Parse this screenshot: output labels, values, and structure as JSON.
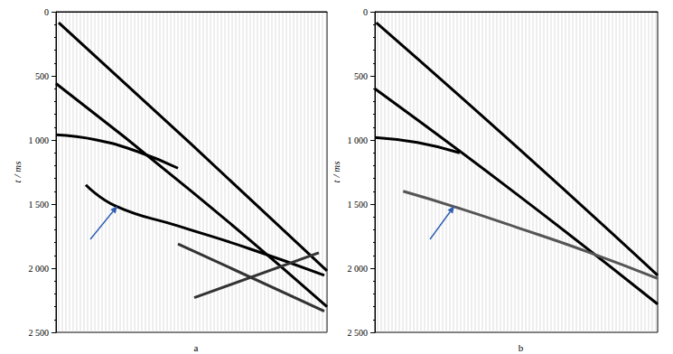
{
  "chart_data": [
    {
      "type": "line",
      "title": "a",
      "y_label": "t / ms",
      "xlim": [
        0,
        100
      ],
      "ylim": [
        0,
        2500
      ],
      "yticks": [
        0,
        500,
        {
          "value": 1000,
          "label": "1 000"
        },
        {
          "value": 1500,
          "label": "1 500"
        },
        {
          "value": 2000,
          "label": "2 000"
        },
        {
          "value": 2500,
          "label": "2 500"
        }
      ],
      "tick_labels": "y",
      "grid": false,
      "series": [
        {
          "color": "#000000",
          "line_style": "solid",
          "x": [
            1,
            50,
            100
          ],
          "values": [
            85,
            1035,
            2020
          ]
        },
        {
          "color": "#000000",
          "line_style": "solid",
          "x": [
            0,
            50,
            100
          ],
          "values": [
            560,
            1400,
            2300
          ]
        },
        {
          "color": "#000000",
          "line_style": "solid",
          "x": [
            0,
            15,
            30,
            45
          ],
          "values": [
            960,
            1000,
            1090,
            1220
          ]
        },
        {
          "color": "#000000",
          "line_style": "solid",
          "x": [
            11,
            22,
            45,
            71,
            99
          ],
          "values": [
            1350,
            1515,
            1670,
            1845,
            2055
          ]
        },
        {
          "color": "#333333",
          "line_style": "solid",
          "x": [
            45,
            99
          ],
          "values": [
            1810,
            2335
          ]
        },
        {
          "color": "#333333",
          "line_style": "solid",
          "x": [
            51,
            97
          ],
          "values": [
            2230,
            1880
          ]
        }
      ]
    },
    {
      "type": "line",
      "title": "b",
      "y_label": "t / ms",
      "xlim": [
        0,
        100
      ],
      "ylim": [
        0,
        2500
      ],
      "yticks": [
        0,
        500,
        {
          "value": 1000,
          "label": "1 000"
        },
        {
          "value": 1500,
          "label": "1 500"
        },
        {
          "value": 2000,
          "label": "2 000"
        },
        {
          "value": 2500,
          "label": "2 500"
        }
      ],
      "tick_labels": "y",
      "grid": false,
      "series": [
        {
          "color": "#000000",
          "line_style": "solid",
          "x": [
            0.5,
            50,
            100
          ],
          "values": [
            85,
            1050,
            2055
          ]
        },
        {
          "color": "#000000",
          "line_style": "solid",
          "x": [
            0,
            50,
            100
          ],
          "values": [
            600,
            1420,
            2280
          ]
        },
        {
          "color": "#000000",
          "line_style": "solid",
          "x": [
            0,
            15,
            30
          ],
          "values": [
            980,
            1020,
            1100
          ]
        },
        {
          "color": "#555555",
          "line_style": "solid",
          "x": [
            10,
            28,
            50,
            75,
            100
          ],
          "values": [
            1400,
            1520,
            1680,
            1870,
            2080
          ]
        }
      ]
    }
  ]
}
